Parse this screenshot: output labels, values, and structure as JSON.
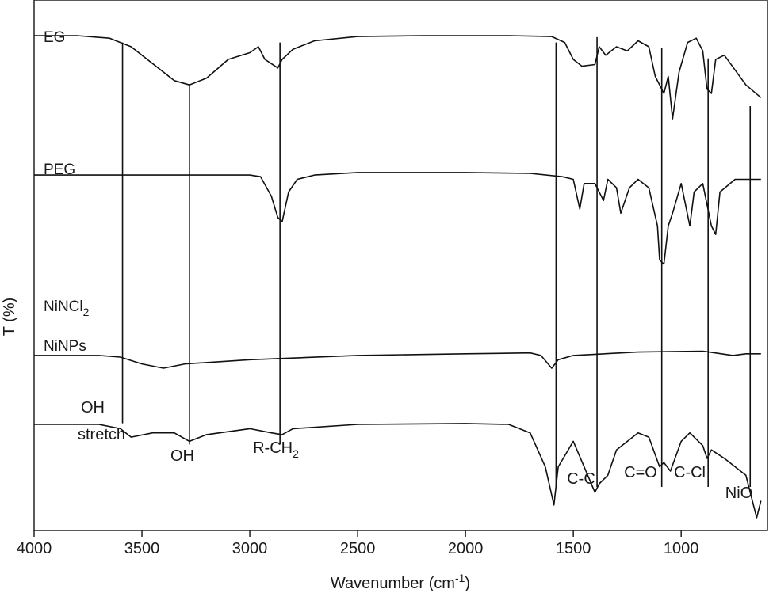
{
  "chart_data": {
    "type": "line",
    "title": "",
    "xlabel": "Wavenumber (cm",
    "xlabel_sup": "-1",
    "xlabel_close": ")",
    "ylabel": "T (%)",
    "xlim": [
      4000,
      600
    ],
    "x_reversed": true,
    "xticks": [
      4000,
      3500,
      3000,
      2500,
      2000,
      1500,
      1000
    ],
    "y_ticks_shown": false,
    "grid": false,
    "legend": "none",
    "series": [
      {
        "name": "EG",
        "offset": 0.92,
        "scale": 0.16,
        "points": [
          [
            4000,
            0.08
          ],
          [
            3800,
            0.08
          ],
          [
            3650,
            0.05
          ],
          [
            3550,
            -0.05
          ],
          [
            3450,
            -0.25
          ],
          [
            3350,
            -0.45
          ],
          [
            3280,
            -0.5
          ],
          [
            3200,
            -0.42
          ],
          [
            3100,
            -0.2
          ],
          [
            3000,
            -0.12
          ],
          [
            2960,
            -0.05
          ],
          [
            2930,
            -0.2
          ],
          [
            2900,
            -0.25
          ],
          [
            2870,
            -0.3
          ],
          [
            2850,
            -0.2
          ],
          [
            2800,
            -0.08
          ],
          [
            2700,
            0.02
          ],
          [
            2500,
            0.07
          ],
          [
            2200,
            0.08
          ],
          [
            1800,
            0.08
          ],
          [
            1600,
            0.07
          ],
          [
            1540,
            0.0
          ],
          [
            1500,
            -0.2
          ],
          [
            1460,
            -0.28
          ],
          [
            1400,
            -0.26
          ],
          [
            1380,
            -0.05
          ],
          [
            1350,
            -0.15
          ],
          [
            1300,
            -0.05
          ],
          [
            1250,
            -0.1
          ],
          [
            1200,
            0.02
          ],
          [
            1150,
            -0.05
          ],
          [
            1120,
            -0.4
          ],
          [
            1080,
            -0.6
          ],
          [
            1060,
            -0.4
          ],
          [
            1040,
            -0.9
          ],
          [
            1010,
            -0.35
          ],
          [
            970,
            0.0
          ],
          [
            930,
            0.05
          ],
          [
            900,
            -0.1
          ],
          [
            880,
            -0.55
          ],
          [
            860,
            -0.6
          ],
          [
            840,
            -0.2
          ],
          [
            800,
            -0.15
          ],
          [
            700,
            -0.5
          ],
          [
            630,
            -0.65
          ]
        ]
      },
      {
        "name": "PEG",
        "offset": 0.67,
        "scale": 0.16,
        "points": [
          [
            4000,
            0.0
          ],
          [
            3200,
            0.0
          ],
          [
            3000,
            0.0
          ],
          [
            2950,
            -0.02
          ],
          [
            2900,
            -0.25
          ],
          [
            2870,
            -0.5
          ],
          [
            2850,
            -0.55
          ],
          [
            2820,
            -0.2
          ],
          [
            2780,
            -0.05
          ],
          [
            2700,
            0.0
          ],
          [
            2500,
            0.03
          ],
          [
            2000,
            0.03
          ],
          [
            1700,
            0.02
          ],
          [
            1550,
            -0.02
          ],
          [
            1500,
            -0.05
          ],
          [
            1470,
            -0.4
          ],
          [
            1450,
            -0.1
          ],
          [
            1400,
            -0.1
          ],
          [
            1360,
            -0.3
          ],
          [
            1340,
            -0.05
          ],
          [
            1300,
            -0.15
          ],
          [
            1280,
            -0.45
          ],
          [
            1240,
            -0.15
          ],
          [
            1200,
            -0.05
          ],
          [
            1150,
            -0.15
          ],
          [
            1110,
            -0.6
          ],
          [
            1100,
            -1.0
          ],
          [
            1080,
            -1.05
          ],
          [
            1060,
            -0.6
          ],
          [
            1040,
            -0.45
          ],
          [
            1000,
            -0.1
          ],
          [
            960,
            -0.6
          ],
          [
            940,
            -0.2
          ],
          [
            900,
            -0.1
          ],
          [
            860,
            -0.6
          ],
          [
            840,
            -0.7
          ],
          [
            820,
            -0.2
          ],
          [
            750,
            -0.05
          ],
          [
            630,
            -0.05
          ]
        ]
      },
      {
        "name": "NiNCl",
        "name_sub": "2",
        "offset": 0.33,
        "scale": 0.16,
        "points": [
          [
            4000,
            0.0
          ],
          [
            3700,
            0.0
          ],
          [
            3600,
            -0.02
          ],
          [
            3500,
            -0.1
          ],
          [
            3400,
            -0.15
          ],
          [
            3300,
            -0.1
          ],
          [
            3000,
            -0.05
          ],
          [
            2500,
            0.0
          ],
          [
            2000,
            0.02
          ],
          [
            1700,
            0.03
          ],
          [
            1650,
            0.0
          ],
          [
            1600,
            -0.15
          ],
          [
            1570,
            -0.05
          ],
          [
            1500,
            0.0
          ],
          [
            1200,
            0.04
          ],
          [
            900,
            0.05
          ],
          [
            760,
            0.0
          ],
          [
            700,
            0.02
          ],
          [
            630,
            0.02
          ]
        ]
      },
      {
        "name": "NiNPs",
        "offset": 0.2,
        "scale": 0.16,
        "points": [
          [
            4000,
            0.0
          ],
          [
            3700,
            0.0
          ],
          [
            3600,
            -0.05
          ],
          [
            3550,
            -0.15
          ],
          [
            3450,
            -0.1
          ],
          [
            3350,
            -0.1
          ],
          [
            3280,
            -0.2
          ],
          [
            3200,
            -0.12
          ],
          [
            3000,
            -0.05
          ],
          [
            2900,
            -0.1
          ],
          [
            2850,
            -0.12
          ],
          [
            2800,
            -0.05
          ],
          [
            2500,
            0.0
          ],
          [
            2000,
            0.01
          ],
          [
            1800,
            0.0
          ],
          [
            1700,
            -0.1
          ],
          [
            1630,
            -0.5
          ],
          [
            1590,
            -0.95
          ],
          [
            1570,
            -0.5
          ],
          [
            1500,
            -0.2
          ],
          [
            1450,
            -0.5
          ],
          [
            1400,
            -0.8
          ],
          [
            1380,
            -0.7
          ],
          [
            1340,
            -0.6
          ],
          [
            1300,
            -0.3
          ],
          [
            1200,
            -0.1
          ],
          [
            1150,
            -0.15
          ],
          [
            1100,
            -0.5
          ],
          [
            1080,
            -0.45
          ],
          [
            1050,
            -0.55
          ],
          [
            1000,
            -0.2
          ],
          [
            960,
            -0.1
          ],
          [
            900,
            -0.25
          ],
          [
            880,
            -0.4
          ],
          [
            860,
            -0.3
          ],
          [
            800,
            -0.4
          ],
          [
            700,
            -0.6
          ],
          [
            650,
            -1.1
          ],
          [
            630,
            -0.9
          ]
        ]
      }
    ],
    "reference_lines": [
      {
        "x": 3590,
        "top": 0.92,
        "bottom": 0.12,
        "label": "OH",
        "label2": "stretch"
      },
      {
        "x": 3280,
        "top": 0.84,
        "bottom": 0.08,
        "label": "OH"
      },
      {
        "x": 2860,
        "top": 0.92,
        "bottom": 0.08,
        "label": "R-CH",
        "label_sub": "2"
      },
      {
        "x": 1580,
        "top": 0.92,
        "bottom": 0.0,
        "label": ""
      },
      {
        "x": 1390,
        "top": 0.93,
        "bottom": 0.0,
        "label": "C-C"
      },
      {
        "x": 1090,
        "top": 0.91,
        "bottom": 0.0,
        "label": "C=O"
      },
      {
        "x": 875,
        "top": 0.89,
        "bottom": 0.0,
        "label": "C-Cl"
      },
      {
        "x": 680,
        "top": 0.8,
        "bottom": 0.0,
        "label": "NiO"
      }
    ]
  }
}
